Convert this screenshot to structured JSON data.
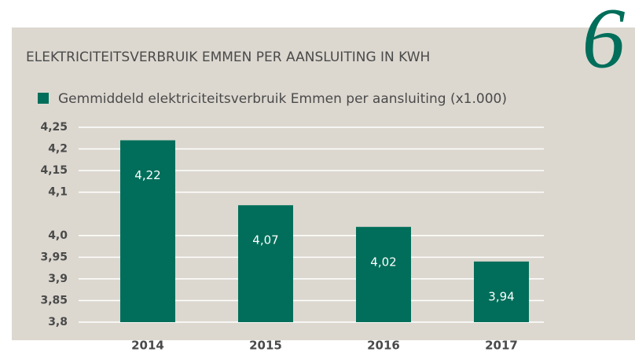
{
  "chart_data": {
    "type": "bar",
    "title": "ELEKTRICITEITSVERBRUIK EMMEN PER AANSLUITING IN KWH",
    "annotation": "6",
    "categories": [
      "2014",
      "2015",
      "2016",
      "2017"
    ],
    "series": [
      {
        "name": "Gemmiddeld elektriciteitsverbruik Emmen per aansluiting (x1.000)",
        "color": "#006e5a",
        "values": [
          4.22,
          4.07,
          4.02,
          3.94
        ],
        "value_labels": [
          "4,22",
          "4,07",
          "4,02",
          "3,94"
        ]
      }
    ],
    "ylim": [
      3.8,
      4.25
    ],
    "yticks": [
      {
        "value": 3.8,
        "label": "3,8"
      },
      {
        "value": 3.85,
        "label": "3,85"
      },
      {
        "value": 3.9,
        "label": "3,9"
      },
      {
        "value": 3.95,
        "label": "3,95"
      },
      {
        "value": 4.0,
        "label": "4,0"
      },
      {
        "value": 4.1,
        "label": "4,1"
      },
      {
        "value": 4.15,
        "label": "4,15"
      },
      {
        "value": 4.2,
        "label": "4,2"
      },
      {
        "value": 4.25,
        "label": "4,25"
      }
    ],
    "grid": true
  }
}
